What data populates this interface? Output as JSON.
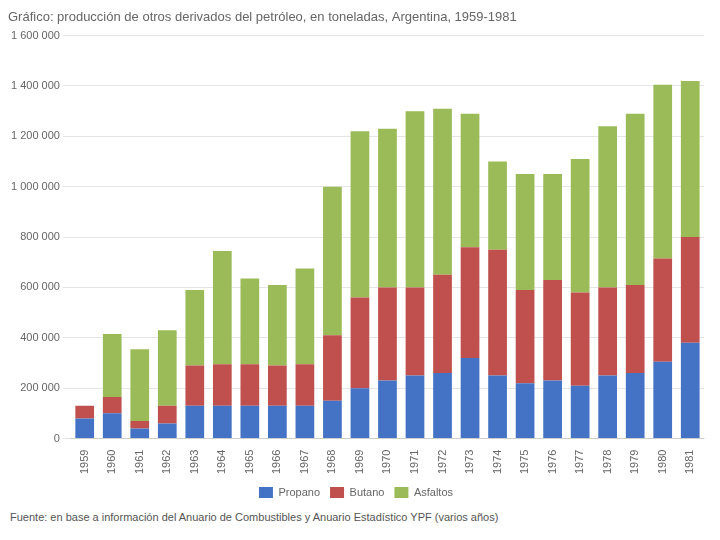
{
  "chart_data": {
    "type": "bar",
    "title": "Gráfico: producción de otros derivados del petróleo, en toneladas, Argentina, 1959-1981",
    "categories": [
      "1959",
      "1960",
      "1961",
      "1962",
      "1963",
      "1964",
      "1965",
      "1966",
      "1967",
      "1968",
      "1969",
      "1970",
      "1971",
      "1972",
      "1973",
      "1974",
      "1975",
      "1976",
      "1977",
      "1978",
      "1979",
      "1980",
      "1981"
    ],
    "series": [
      {
        "name": "Propano",
        "color": "#4472C4",
        "values": [
          80000,
          100000,
          40000,
          60000,
          130000,
          130000,
          130000,
          130000,
          130000,
          150000,
          200000,
          230000,
          250000,
          260000,
          320000,
          250000,
          220000,
          230000,
          210000,
          250000,
          260000,
          305000,
          380000
        ]
      },
      {
        "name": "Butano",
        "color": "#C0504D",
        "values": [
          50000,
          65000,
          30000,
          70000,
          160000,
          165000,
          165000,
          160000,
          165000,
          260000,
          360000,
          370000,
          350000,
          390000,
          440000,
          500000,
          370000,
          400000,
          370000,
          350000,
          350000,
          410000,
          420000
        ]
      },
      {
        "name": "Asfaltos",
        "color": "#9BBB59",
        "values": [
          0,
          250000,
          285000,
          300000,
          300000,
          450000,
          340000,
          320000,
          380000,
          590000,
          660000,
          630000,
          700000,
          660000,
          530000,
          350000,
          460000,
          420000,
          530000,
          640000,
          680000,
          690000,
          620000
        ]
      }
    ],
    "stacked": true,
    "ylim": [
      0,
      1600000
    ],
    "yticks": [
      0,
      {
        "value": 200000,
        "label": "200 000"
      },
      {
        "value": 400000,
        "label": "400 000"
      },
      {
        "value": 600000,
        "label": "600 000"
      },
      {
        "value": 800000,
        "label": "800 000"
      },
      {
        "value": 1000000,
        "label": "1 000 000"
      },
      {
        "value": 1200000,
        "label": "1 200 000"
      },
      {
        "value": 1400000,
        "label": "1 400 000"
      },
      {
        "value": 1600000,
        "label": "1 600 000"
      }
    ],
    "grid": true,
    "legend": "bottom",
    "annotations": [
      "Fuente: en base a información del Anuario de Combustibles y Anuario Estadístico YPF (varios años)"
    ]
  }
}
